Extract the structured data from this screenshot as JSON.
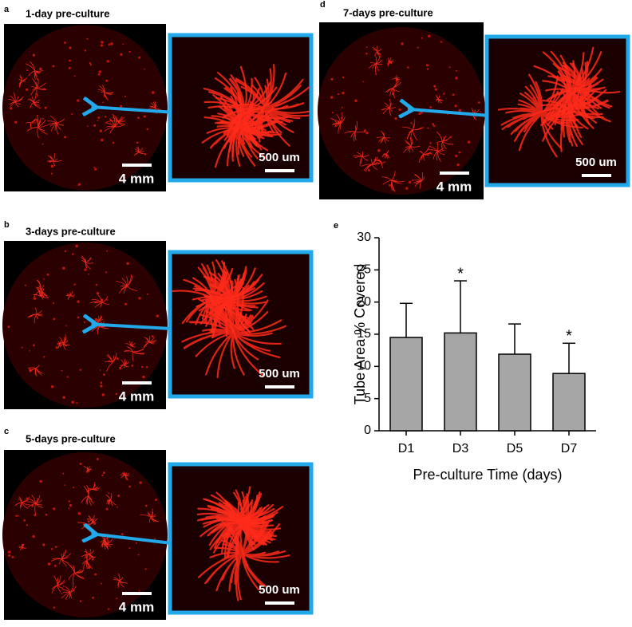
{
  "panels": [
    {
      "label": "a",
      "title": "1-day pre-culture",
      "scale_large": "4 mm",
      "scale_small": "500 um"
    },
    {
      "label": "b",
      "title": "3-days pre-culture",
      "scale_large": "4 mm",
      "scale_small": "500 um"
    },
    {
      "label": "c",
      "title": "5-days pre-culture",
      "scale_large": "4 mm",
      "scale_small": "500 um"
    },
    {
      "label": "d",
      "title": "7-days pre-culture",
      "scale_large": "4 mm",
      "scale_small": "500 um"
    }
  ],
  "chart_data": {
    "type": "bar",
    "panel_label": "e",
    "categories": [
      "D1",
      "D3",
      "D5",
      "D7"
    ],
    "values": [
      14.5,
      15.2,
      11.9,
      8.9
    ],
    "errors": [
      5.3,
      8.1,
      4.7,
      4.7
    ],
    "color": "#a6a6a6",
    "annotations": [
      {
        "x": "D3",
        "text": "*"
      },
      {
        "x": "D7",
        "text": "*"
      }
    ],
    "y_label": "Tube Area % Covered",
    "x_label": "Pre-culture Time (days)",
    "ylim": [
      0,
      30
    ],
    "yticks": [
      0,
      5,
      10,
      15,
      20,
      25,
      30
    ]
  }
}
